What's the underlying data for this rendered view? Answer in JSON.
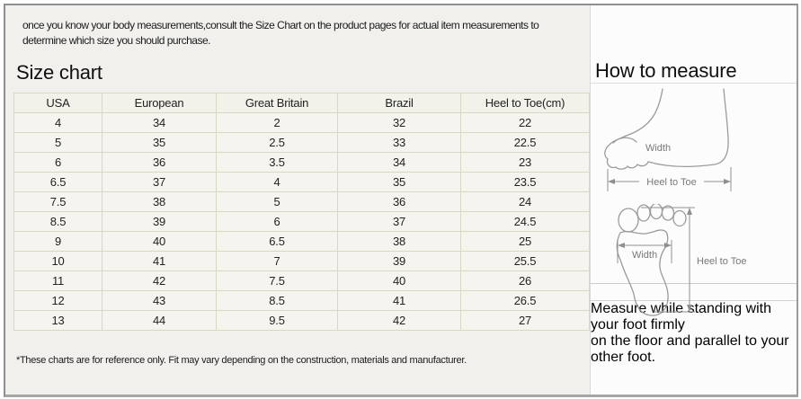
{
  "intro_lines": [
    "once you know your body measurements,consult the Size Chart on the product pages for actual item measurements to",
    "determine which size you should purchase."
  ],
  "size_chart": {
    "title": "Size chart",
    "columns": [
      "USA",
      "European",
      "Great Britain",
      "Brazil",
      "Heel to Toe(cm)"
    ],
    "rows": [
      [
        "4",
        "34",
        "2",
        "32",
        "22"
      ],
      [
        "5",
        "35",
        "2.5",
        "33",
        "22.5"
      ],
      [
        "6",
        "36",
        "3.5",
        "34",
        "23"
      ],
      [
        "6.5",
        "37",
        "4",
        "35",
        "23.5"
      ],
      [
        "7.5",
        "38",
        "5",
        "36",
        "24"
      ],
      [
        "8.5",
        "39",
        "6",
        "37",
        "24.5"
      ],
      [
        "9",
        "40",
        "6.5",
        "38",
        "25"
      ],
      [
        "10",
        "41",
        "7",
        "39",
        "25.5"
      ],
      [
        "11",
        "42",
        "7.5",
        "40",
        "26"
      ],
      [
        "12",
        "43",
        "8.5",
        "41",
        "26.5"
      ],
      [
        "13",
        "44",
        "9.5",
        "42",
        "27"
      ]
    ],
    "footnote": "*These charts are for reference only. Fit may vary depending on the construction, materials and manufacturer."
  },
  "how_to_measure": {
    "title": "How to measure",
    "side_view": {
      "width_label": "Width",
      "heel_to_toe_label": "Heel to Toe"
    },
    "sole_view": {
      "width_label": "Width",
      "heel_to_toe_label": "Heel to Toe"
    },
    "note_lines": [
      "Measure while standing with your foot firmly",
      "on the floor and parallel to your other foot."
    ]
  },
  "colors": {
    "frame_gray": "#8f8f8f",
    "left_panel_bg": "#f1f0ed",
    "cell_bg": "#f5f4ee",
    "header_bg": "#f2f1ea",
    "table_border": "#d9d6c5",
    "diagram_stroke": "#9b9b9b",
    "diagram_label": "#787878",
    "text": "#1b1b1b"
  }
}
